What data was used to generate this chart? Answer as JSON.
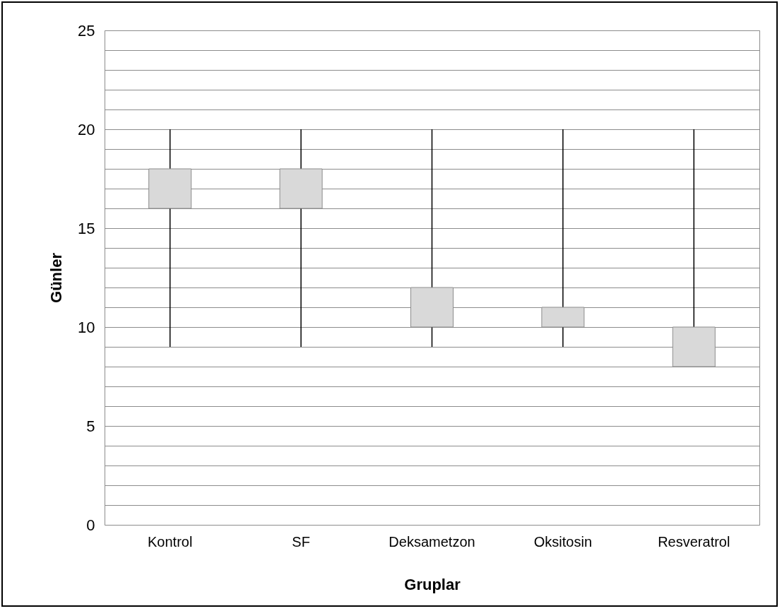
{
  "chart_data": {
    "type": "candlestick",
    "xlabel": "Gruplar",
    "ylabel": "Günler",
    "categories": [
      "Kontrol",
      "SF",
      "Deksametzon",
      "Oksitosin",
      "Resveratrol"
    ],
    "ohlc": [
      [
        16,
        20,
        9,
        18
      ],
      [
        16,
        20,
        9,
        18
      ],
      [
        10,
        20,
        9,
        12
      ],
      [
        10,
        20,
        9,
        11
      ],
      [
        8,
        20,
        8,
        10
      ]
    ],
    "color": "#d9d9d9",
    "ylim": [
      0,
      25
    ],
    "yticks": [
      0,
      {
        "value": 1,
        "label": null
      },
      {
        "value": 2,
        "label": null
      },
      {
        "value": 3,
        "label": null
      },
      {
        "value": 4,
        "label": null
      },
      5,
      {
        "value": 6,
        "label": null
      },
      {
        "value": 7,
        "label": null
      },
      {
        "value": 8,
        "label": null
      },
      {
        "value": 9,
        "label": null
      },
      10,
      {
        "value": 11,
        "label": null
      },
      {
        "value": 12,
        "label": null
      },
      {
        "value": 13,
        "label": null
      },
      {
        "value": 14,
        "label": null
      },
      15,
      {
        "value": 16,
        "label": null
      },
      {
        "value": 17,
        "label": null
      },
      {
        "value": 18,
        "label": null
      },
      {
        "value": 19,
        "label": null
      },
      20,
      {
        "value": 21,
        "label": null
      },
      {
        "value": 22,
        "label": null
      },
      {
        "value": 23,
        "label": null
      },
      {
        "value": 24,
        "label": null
      },
      25
    ],
    "grid": true
  }
}
